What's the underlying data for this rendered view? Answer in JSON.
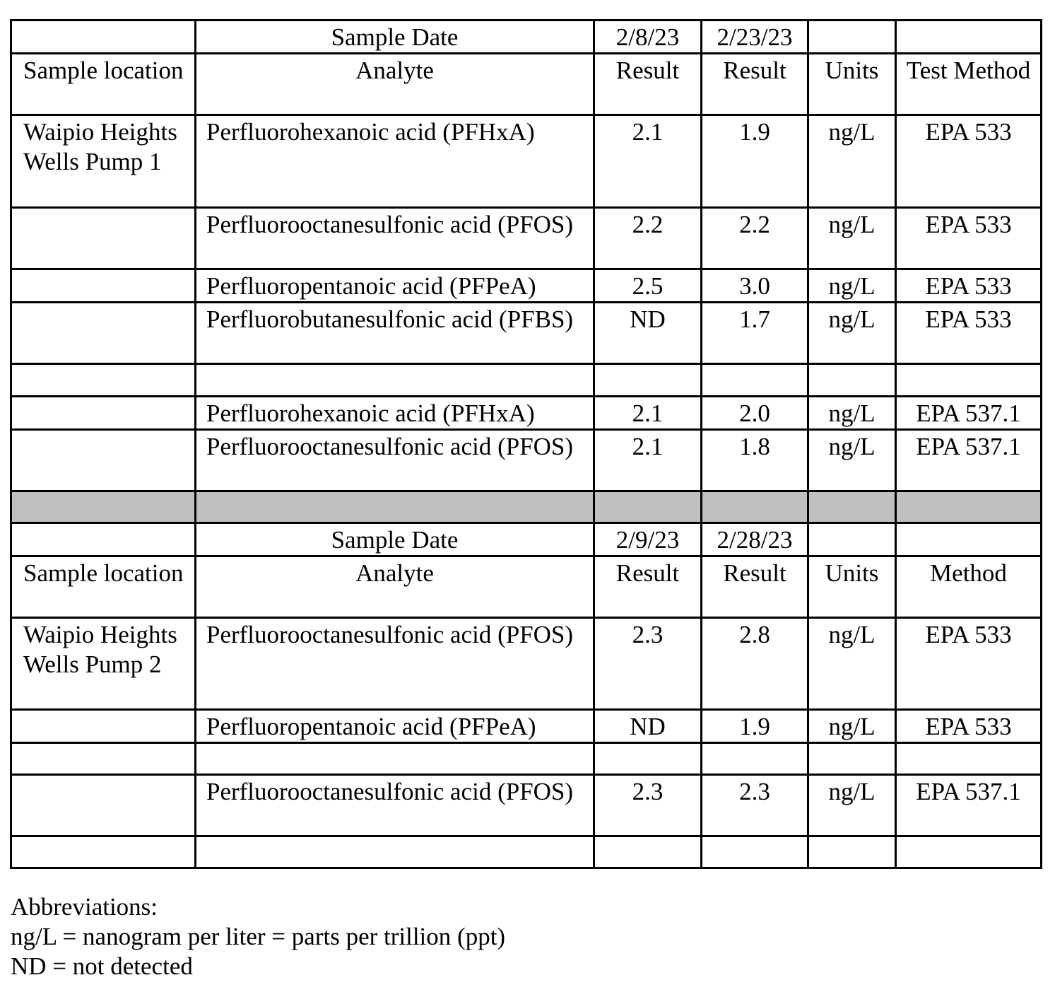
{
  "table": {
    "rows": [
      {
        "type": "date",
        "cells": [
          "",
          "Sample Date",
          "2/8/23",
          "2/23/23",
          "",
          ""
        ]
      },
      {
        "type": "header",
        "cells": [
          "Sample location",
          "Analyte",
          "Result",
          "Result",
          "Units",
          "Test Method"
        ]
      },
      {
        "type": "data",
        "cells": [
          "Waipio Heights Wells Pump 1",
          "Perfluorohexanoic acid (PFHxA)",
          "2.1",
          "1.9",
          "ng/L",
          "EPA 533"
        ]
      },
      {
        "type": "data",
        "cells": [
          "",
          "Perfluorooctanesulfonic acid (PFOS)",
          "2.2",
          "2.2",
          "ng/L",
          "EPA 533"
        ]
      },
      {
        "type": "data",
        "cells": [
          "",
          "Perfluoropentanoic acid (PFPeA)",
          "2.5",
          "3.0",
          "ng/L",
          "EPA 533"
        ]
      },
      {
        "type": "data",
        "cells": [
          "",
          "Perfluorobutanesulfonic acid (PFBS)",
          "ND",
          "1.7",
          "ng/L",
          "EPA 533"
        ]
      },
      {
        "type": "empty",
        "cells": [
          "",
          "",
          "",
          "",
          "",
          ""
        ]
      },
      {
        "type": "data",
        "cells": [
          "",
          "Perfluorohexanoic acid (PFHxA)",
          "2.1",
          "2.0",
          "ng/L",
          "EPA 537.1"
        ]
      },
      {
        "type": "data",
        "cells": [
          "",
          "Perfluorooctanesulfonic acid (PFOS)",
          "2.1",
          "1.8",
          "ng/L",
          "EPA 537.1"
        ]
      },
      {
        "type": "separator",
        "cells": [
          "",
          "",
          "",
          "",
          "",
          ""
        ]
      },
      {
        "type": "date",
        "cells": [
          "",
          "Sample Date",
          "2/9/23",
          "2/28/23",
          "",
          ""
        ]
      },
      {
        "type": "header",
        "cells": [
          "Sample location",
          "Analyte",
          "Result",
          "Result",
          "Units",
          "Method"
        ]
      },
      {
        "type": "data",
        "cells": [
          "Waipio Heights Wells Pump 2",
          "Perfluorooctanesulfonic acid (PFOS)",
          "2.3",
          "2.8",
          "ng/L",
          "EPA 533"
        ]
      },
      {
        "type": "data",
        "cells": [
          "",
          "Perfluoropentanoic acid (PFPeA)",
          "ND",
          "1.9",
          "ng/L",
          "EPA 533"
        ]
      },
      {
        "type": "empty",
        "cells": [
          "",
          "",
          "",
          "",
          "",
          ""
        ]
      },
      {
        "type": "data",
        "cells": [
          "",
          "Perfluorooctanesulfonic acid (PFOS)",
          "2.3",
          "2.3",
          "ng/L",
          "EPA 537.1"
        ]
      },
      {
        "type": "empty",
        "cells": [
          "",
          "",
          "",
          "",
          "",
          ""
        ]
      }
    ],
    "separator_color": "#c0c0c0"
  },
  "notes": {
    "heading": "Abbreviations:",
    "lines": [
      "ng/L = nanogram per liter = parts per trillion (ppt)",
      "ND = not detected"
    ]
  }
}
